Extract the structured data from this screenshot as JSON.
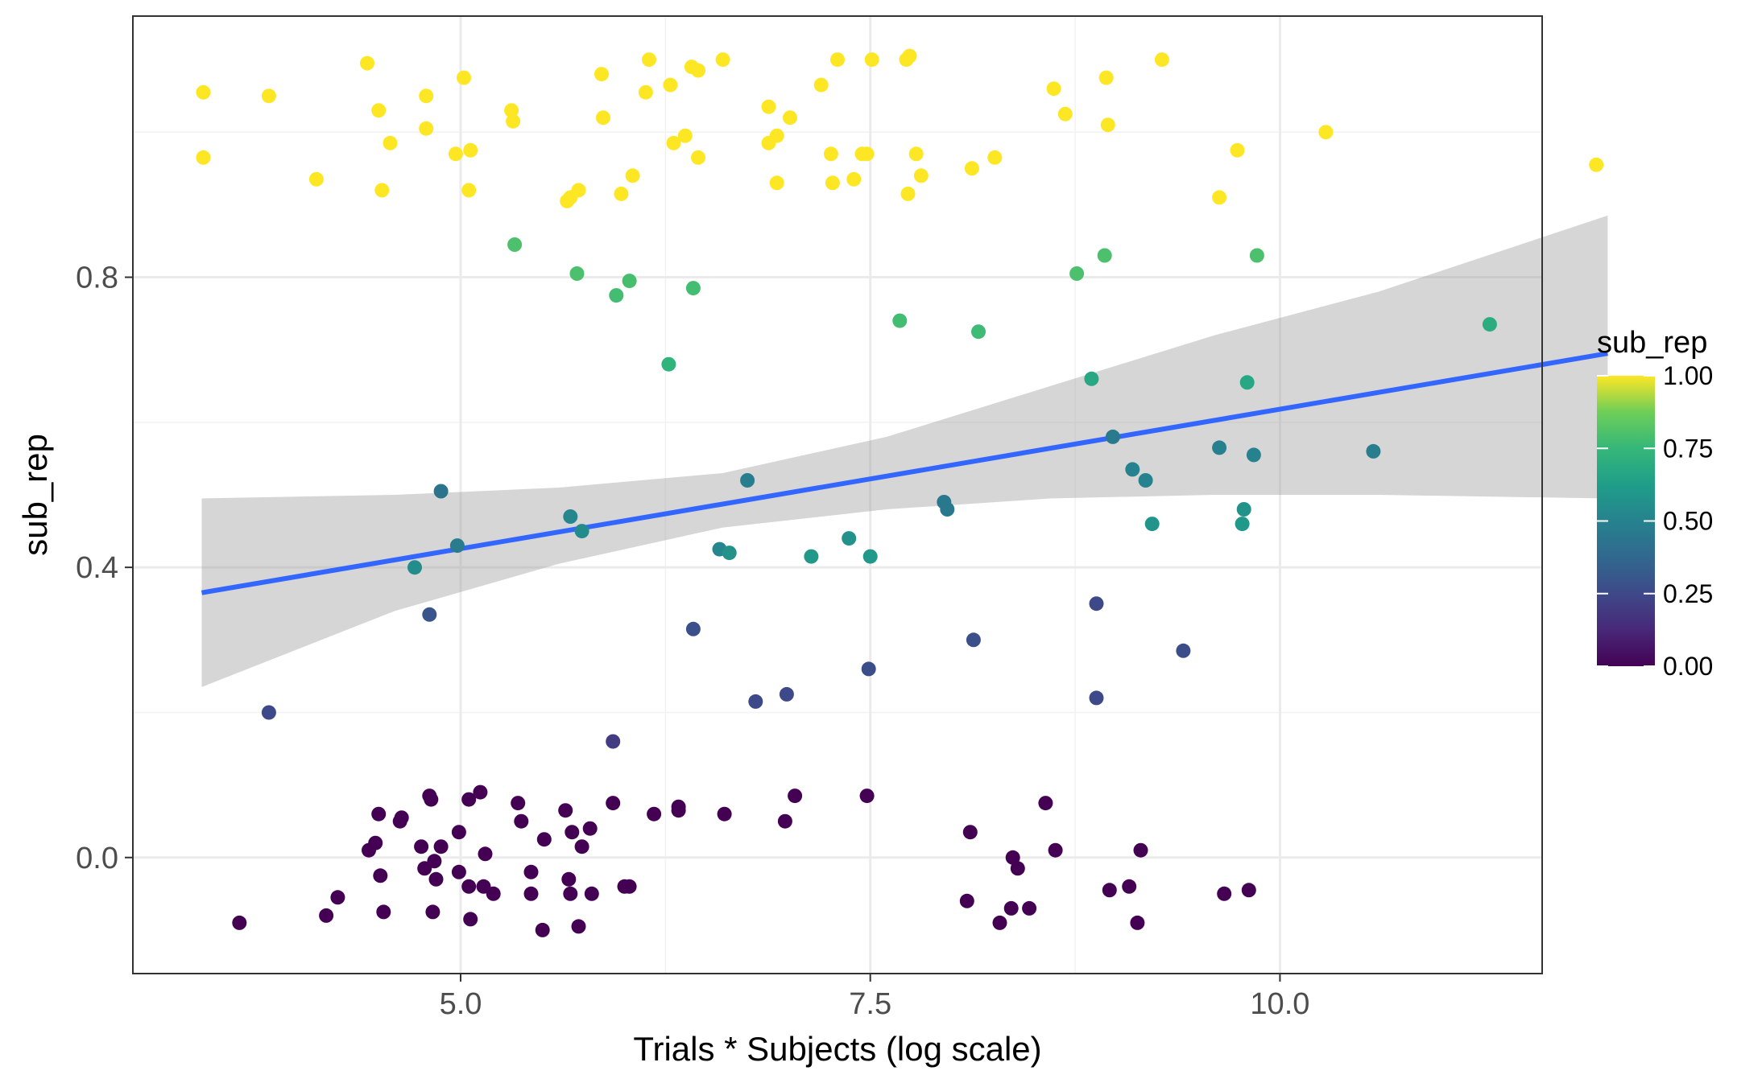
{
  "chart_data": {
    "type": "scatter",
    "title": "",
    "xlabel": "Trials * Subjects (log scale)",
    "ylabel": "sub_rep",
    "xlim": [
      3.0,
      11.6
    ],
    "ylim": [
      -0.16,
      1.16
    ],
    "x_ticks": [
      5.0,
      7.5,
      10.0
    ],
    "x_tick_labels": [
      "5.0",
      "7.5",
      "10.0"
    ],
    "y_ticks": [
      0.0,
      0.4,
      0.8
    ],
    "y_tick_labels": [
      "0.0",
      "0.4",
      "0.8"
    ],
    "grid": true,
    "legend": {
      "title": "sub_rep",
      "position": "right",
      "type": "colorbar",
      "colormap": "viridis",
      "ticks": [
        0.0,
        0.25,
        0.5,
        0.75,
        1.0
      ],
      "tick_labels": [
        "0.00",
        "0.25",
        "0.50",
        "0.75",
        "1.00"
      ]
    },
    "colors": {
      "fit_line": "#3366FF",
      "ribbon": "#999999",
      "panel_border": "#333333",
      "grid_major": "#EBEBEB"
    },
    "fit": {
      "type": "linear",
      "x_range": [
        3.42,
        12.0
      ],
      "y_at_start": 0.365,
      "y_at_end": 0.695,
      "ci_x": [
        3.42,
        4.6,
        5.6,
        6.6,
        7.6,
        8.6,
        9.6,
        10.6,
        12.0
      ],
      "ci_upper": [
        0.495,
        0.5,
        0.51,
        0.53,
        0.58,
        0.65,
        0.72,
        0.78,
        0.885
      ],
      "ci_lower": [
        0.235,
        0.34,
        0.405,
        0.455,
        0.48,
        0.495,
        0.5,
        0.5,
        0.495
      ]
    },
    "points": [
      {
        "x": 3.43,
        "y": 1.055,
        "v": 1.0
      },
      {
        "x": 3.43,
        "y": 0.965,
        "v": 1.0
      },
      {
        "x": 3.83,
        "y": 1.05,
        "v": 1.0
      },
      {
        "x": 4.12,
        "y": 0.935,
        "v": 1.0
      },
      {
        "x": 4.43,
        "y": 1.095,
        "v": 1.0
      },
      {
        "x": 4.5,
        "y": 1.03,
        "v": 1.0
      },
      {
        "x": 4.52,
        "y": 0.92,
        "v": 1.0
      },
      {
        "x": 4.57,
        "y": 0.985,
        "v": 1.0
      },
      {
        "x": 4.79,
        "y": 1.05,
        "v": 1.0
      },
      {
        "x": 4.79,
        "y": 1.005,
        "v": 1.0
      },
      {
        "x": 4.97,
        "y": 0.97,
        "v": 1.0
      },
      {
        "x": 5.02,
        "y": 1.075,
        "v": 1.0
      },
      {
        "x": 5.06,
        "y": 0.975,
        "v": 1.0
      },
      {
        "x": 5.05,
        "y": 0.92,
        "v": 1.0
      },
      {
        "x": 5.31,
        "y": 1.03,
        "v": 1.0
      },
      {
        "x": 5.32,
        "y": 1.015,
        "v": 1.0
      },
      {
        "x": 5.65,
        "y": 0.905,
        "v": 1.0
      },
      {
        "x": 5.67,
        "y": 0.91,
        "v": 1.0
      },
      {
        "x": 5.72,
        "y": 0.92,
        "v": 1.0
      },
      {
        "x": 5.86,
        "y": 1.08,
        "v": 1.0
      },
      {
        "x": 5.87,
        "y": 1.02,
        "v": 1.0
      },
      {
        "x": 5.98,
        "y": 0.915,
        "v": 1.0
      },
      {
        "x": 6.05,
        "y": 0.94,
        "v": 1.0
      },
      {
        "x": 6.13,
        "y": 1.055,
        "v": 1.0
      },
      {
        "x": 6.15,
        "y": 1.1,
        "v": 1.0
      },
      {
        "x": 6.28,
        "y": 1.065,
        "v": 1.0
      },
      {
        "x": 6.3,
        "y": 0.985,
        "v": 1.0
      },
      {
        "x": 6.37,
        "y": 0.995,
        "v": 1.0
      },
      {
        "x": 6.41,
        "y": 1.09,
        "v": 1.0
      },
      {
        "x": 6.45,
        "y": 1.085,
        "v": 1.0
      },
      {
        "x": 6.45,
        "y": 0.965,
        "v": 1.0
      },
      {
        "x": 6.6,
        "y": 1.1,
        "v": 1.0
      },
      {
        "x": 6.88,
        "y": 1.035,
        "v": 1.0
      },
      {
        "x": 6.88,
        "y": 0.985,
        "v": 1.0
      },
      {
        "x": 6.93,
        "y": 0.995,
        "v": 1.0
      },
      {
        "x": 6.93,
        "y": 0.93,
        "v": 1.0
      },
      {
        "x": 7.01,
        "y": 1.02,
        "v": 1.0
      },
      {
        "x": 7.2,
        "y": 1.065,
        "v": 1.0
      },
      {
        "x": 7.26,
        "y": 0.97,
        "v": 1.0
      },
      {
        "x": 7.27,
        "y": 0.93,
        "v": 1.0
      },
      {
        "x": 7.3,
        "y": 1.1,
        "v": 1.0
      },
      {
        "x": 7.4,
        "y": 0.935,
        "v": 1.0
      },
      {
        "x": 7.45,
        "y": 0.97,
        "v": 1.0
      },
      {
        "x": 7.48,
        "y": 0.97,
        "v": 1.0
      },
      {
        "x": 7.51,
        "y": 1.1,
        "v": 1.0
      },
      {
        "x": 7.72,
        "y": 1.1,
        "v": 1.0
      },
      {
        "x": 7.74,
        "y": 1.105,
        "v": 1.0
      },
      {
        "x": 7.73,
        "y": 0.915,
        "v": 1.0
      },
      {
        "x": 7.78,
        "y": 0.97,
        "v": 1.0
      },
      {
        "x": 7.81,
        "y": 0.94,
        "v": 1.0
      },
      {
        "x": 8.12,
        "y": 0.95,
        "v": 1.0
      },
      {
        "x": 8.26,
        "y": 0.965,
        "v": 1.0
      },
      {
        "x": 8.62,
        "y": 1.06,
        "v": 1.0
      },
      {
        "x": 8.69,
        "y": 1.025,
        "v": 1.0
      },
      {
        "x": 8.94,
        "y": 1.075,
        "v": 1.0
      },
      {
        "x": 8.95,
        "y": 1.01,
        "v": 1.0
      },
      {
        "x": 9.28,
        "y": 1.1,
        "v": 1.0
      },
      {
        "x": 9.63,
        "y": 0.91,
        "v": 1.0
      },
      {
        "x": 9.74,
        "y": 0.975,
        "v": 1.0
      },
      {
        "x": 10.28,
        "y": 1.0,
        "v": 1.0
      },
      {
        "x": 11.93,
        "y": 0.955,
        "v": 1.0
      },
      {
        "x": 5.33,
        "y": 0.845,
        "v": 0.8
      },
      {
        "x": 5.71,
        "y": 0.805,
        "v": 0.8
      },
      {
        "x": 5.95,
        "y": 0.775,
        "v": 0.78
      },
      {
        "x": 6.03,
        "y": 0.795,
        "v": 0.79
      },
      {
        "x": 6.42,
        "y": 0.785,
        "v": 0.78
      },
      {
        "x": 6.27,
        "y": 0.68,
        "v": 0.73
      },
      {
        "x": 7.68,
        "y": 0.74,
        "v": 0.78
      },
      {
        "x": 8.16,
        "y": 0.725,
        "v": 0.77
      },
      {
        "x": 8.76,
        "y": 0.805,
        "v": 0.8
      },
      {
        "x": 8.93,
        "y": 0.83,
        "v": 0.8
      },
      {
        "x": 9.86,
        "y": 0.83,
        "v": 0.8
      },
      {
        "x": 8.85,
        "y": 0.66,
        "v": 0.67
      },
      {
        "x": 9.8,
        "y": 0.655,
        "v": 0.67
      },
      {
        "x": 11.28,
        "y": 0.735,
        "v": 0.7
      },
      {
        "x": 4.88,
        "y": 0.505,
        "v": 0.43
      },
      {
        "x": 4.72,
        "y": 0.4,
        "v": 0.55
      },
      {
        "x": 4.98,
        "y": 0.43,
        "v": 0.47
      },
      {
        "x": 4.81,
        "y": 0.335,
        "v": 0.3
      },
      {
        "x": 5.67,
        "y": 0.47,
        "v": 0.52
      },
      {
        "x": 5.74,
        "y": 0.45,
        "v": 0.54
      },
      {
        "x": 6.58,
        "y": 0.425,
        "v": 0.52
      },
      {
        "x": 6.64,
        "y": 0.42,
        "v": 0.57
      },
      {
        "x": 6.75,
        "y": 0.52,
        "v": 0.48
      },
      {
        "x": 7.14,
        "y": 0.415,
        "v": 0.6
      },
      {
        "x": 7.37,
        "y": 0.44,
        "v": 0.57
      },
      {
        "x": 7.5,
        "y": 0.415,
        "v": 0.6
      },
      {
        "x": 7.95,
        "y": 0.49,
        "v": 0.45
      },
      {
        "x": 7.97,
        "y": 0.48,
        "v": 0.45
      },
      {
        "x": 8.98,
        "y": 0.58,
        "v": 0.46
      },
      {
        "x": 9.1,
        "y": 0.535,
        "v": 0.5
      },
      {
        "x": 9.18,
        "y": 0.52,
        "v": 0.5
      },
      {
        "x": 9.22,
        "y": 0.46,
        "v": 0.58
      },
      {
        "x": 9.63,
        "y": 0.565,
        "v": 0.49
      },
      {
        "x": 9.78,
        "y": 0.48,
        "v": 0.57
      },
      {
        "x": 9.77,
        "y": 0.46,
        "v": 0.6
      },
      {
        "x": 9.84,
        "y": 0.555,
        "v": 0.5
      },
      {
        "x": 10.57,
        "y": 0.56,
        "v": 0.48
      },
      {
        "x": 3.83,
        "y": 0.2,
        "v": 0.25
      },
      {
        "x": 6.42,
        "y": 0.315,
        "v": 0.28
      },
      {
        "x": 6.8,
        "y": 0.215,
        "v": 0.25
      },
      {
        "x": 6.99,
        "y": 0.225,
        "v": 0.25
      },
      {
        "x": 7.49,
        "y": 0.26,
        "v": 0.27
      },
      {
        "x": 8.13,
        "y": 0.3,
        "v": 0.28
      },
      {
        "x": 8.88,
        "y": 0.35,
        "v": 0.25
      },
      {
        "x": 8.88,
        "y": 0.22,
        "v": 0.25
      },
      {
        "x": 9.41,
        "y": 0.285,
        "v": 0.27
      },
      {
        "x": 5.93,
        "y": 0.16,
        "v": 0.2
      },
      {
        "x": 3.65,
        "y": -0.09,
        "v": 0.0
      },
      {
        "x": 4.18,
        "y": -0.08,
        "v": 0.0
      },
      {
        "x": 4.25,
        "y": -0.055,
        "v": 0.0
      },
      {
        "x": 4.44,
        "y": 0.01,
        "v": 0.0
      },
      {
        "x": 4.48,
        "y": 0.02,
        "v": 0.0
      },
      {
        "x": 4.5,
        "y": 0.06,
        "v": 0.0
      },
      {
        "x": 4.51,
        "y": -0.025,
        "v": 0.0
      },
      {
        "x": 4.53,
        "y": -0.075,
        "v": 0.0
      },
      {
        "x": 4.63,
        "y": 0.05,
        "v": 0.0
      },
      {
        "x": 4.64,
        "y": 0.055,
        "v": 0.0
      },
      {
        "x": 4.76,
        "y": 0.015,
        "v": 0.0
      },
      {
        "x": 4.78,
        "y": -0.015,
        "v": 0.0
      },
      {
        "x": 4.81,
        "y": 0.085,
        "v": 0.0
      },
      {
        "x": 4.82,
        "y": 0.08,
        "v": 0.0
      },
      {
        "x": 4.83,
        "y": -0.075,
        "v": 0.0
      },
      {
        "x": 4.84,
        "y": -0.005,
        "v": 0.0
      },
      {
        "x": 4.85,
        "y": -0.03,
        "v": 0.0
      },
      {
        "x": 4.88,
        "y": 0.015,
        "v": 0.0
      },
      {
        "x": 4.99,
        "y": 0.035,
        "v": 0.0
      },
      {
        "x": 4.99,
        "y": -0.02,
        "v": 0.0
      },
      {
        "x": 5.05,
        "y": 0.08,
        "v": 0.0
      },
      {
        "x": 5.05,
        "y": -0.04,
        "v": 0.0
      },
      {
        "x": 5.06,
        "y": -0.085,
        "v": 0.0
      },
      {
        "x": 5.12,
        "y": 0.09,
        "v": 0.0
      },
      {
        "x": 5.14,
        "y": -0.04,
        "v": 0.0
      },
      {
        "x": 5.15,
        "y": 0.005,
        "v": 0.0
      },
      {
        "x": 5.2,
        "y": -0.05,
        "v": 0.0
      },
      {
        "x": 5.35,
        "y": 0.075,
        "v": 0.0
      },
      {
        "x": 5.37,
        "y": 0.05,
        "v": 0.0
      },
      {
        "x": 5.43,
        "y": -0.02,
        "v": 0.0
      },
      {
        "x": 5.43,
        "y": -0.05,
        "v": 0.0
      },
      {
        "x": 5.5,
        "y": -0.1,
        "v": 0.0
      },
      {
        "x": 5.51,
        "y": 0.025,
        "v": 0.0
      },
      {
        "x": 5.64,
        "y": 0.065,
        "v": 0.0
      },
      {
        "x": 5.66,
        "y": -0.03,
        "v": 0.0
      },
      {
        "x": 5.67,
        "y": -0.05,
        "v": 0.0
      },
      {
        "x": 5.68,
        "y": 0.035,
        "v": 0.0
      },
      {
        "x": 5.72,
        "y": -0.095,
        "v": 0.0
      },
      {
        "x": 5.74,
        "y": 0.015,
        "v": 0.0
      },
      {
        "x": 5.79,
        "y": 0.04,
        "v": 0.0
      },
      {
        "x": 5.8,
        "y": -0.05,
        "v": 0.0
      },
      {
        "x": 5.93,
        "y": 0.075,
        "v": 0.0
      },
      {
        "x": 6.0,
        "y": -0.04,
        "v": 0.0
      },
      {
        "x": 6.03,
        "y": -0.04,
        "v": 0.0
      },
      {
        "x": 6.18,
        "y": 0.06,
        "v": 0.0
      },
      {
        "x": 6.33,
        "y": 0.07,
        "v": 0.0
      },
      {
        "x": 6.33,
        "y": 0.065,
        "v": 0.0
      },
      {
        "x": 6.61,
        "y": 0.06,
        "v": 0.0
      },
      {
        "x": 6.98,
        "y": 0.05,
        "v": 0.0
      },
      {
        "x": 7.04,
        "y": 0.085,
        "v": 0.0
      },
      {
        "x": 7.48,
        "y": 0.085,
        "v": 0.0
      },
      {
        "x": 8.09,
        "y": -0.06,
        "v": 0.0
      },
      {
        "x": 8.11,
        "y": 0.035,
        "v": 0.0
      },
      {
        "x": 8.29,
        "y": -0.09,
        "v": 0.0
      },
      {
        "x": 8.36,
        "y": -0.07,
        "v": 0.0
      },
      {
        "x": 8.37,
        "y": 0.0,
        "v": 0.0
      },
      {
        "x": 8.4,
        "y": -0.015,
        "v": 0.0
      },
      {
        "x": 8.47,
        "y": -0.07,
        "v": 0.0
      },
      {
        "x": 8.57,
        "y": 0.075,
        "v": 0.0
      },
      {
        "x": 8.63,
        "y": 0.01,
        "v": 0.0
      },
      {
        "x": 8.96,
        "y": -0.045,
        "v": 0.0
      },
      {
        "x": 9.08,
        "y": -0.04,
        "v": 0.0
      },
      {
        "x": 9.13,
        "y": -0.09,
        "v": 0.0
      },
      {
        "x": 9.15,
        "y": 0.01,
        "v": 0.0
      },
      {
        "x": 9.66,
        "y": -0.05,
        "v": 0.0
      },
      {
        "x": 9.81,
        "y": -0.045,
        "v": 0.0
      }
    ]
  }
}
